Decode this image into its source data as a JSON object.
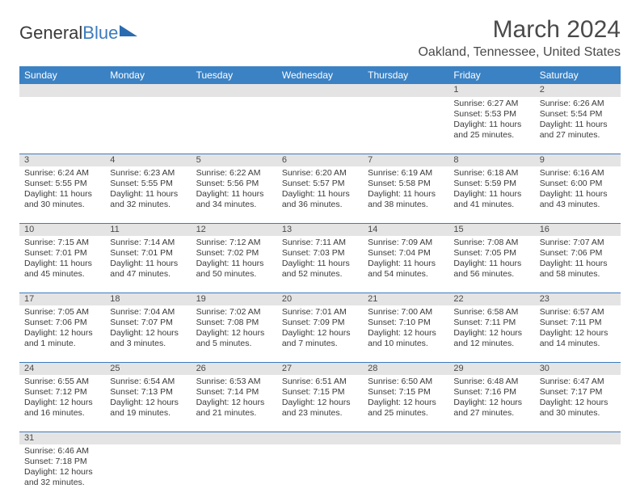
{
  "logo": {
    "part1": "General",
    "part2": "Blue"
  },
  "title": "March 2024",
  "location": "Oakland, Tennessee, United States",
  "colors": {
    "header_bg": "#3b82c4",
    "header_text": "#ffffff",
    "daynum_bg": "#e4e4e4",
    "border": "#3b7bbf",
    "text": "#3a3a3a"
  },
  "dayHeaders": [
    "Sunday",
    "Monday",
    "Tuesday",
    "Wednesday",
    "Thursday",
    "Friday",
    "Saturday"
  ],
  "weeks": [
    [
      null,
      null,
      null,
      null,
      null,
      {
        "n": "1",
        "sr": "6:27 AM",
        "ss": "5:53 PM",
        "dl": "11 hours and 25 minutes."
      },
      {
        "n": "2",
        "sr": "6:26 AM",
        "ss": "5:54 PM",
        "dl": "11 hours and 27 minutes."
      }
    ],
    [
      {
        "n": "3",
        "sr": "6:24 AM",
        "ss": "5:55 PM",
        "dl": "11 hours and 30 minutes."
      },
      {
        "n": "4",
        "sr": "6:23 AM",
        "ss": "5:55 PM",
        "dl": "11 hours and 32 minutes."
      },
      {
        "n": "5",
        "sr": "6:22 AM",
        "ss": "5:56 PM",
        "dl": "11 hours and 34 minutes."
      },
      {
        "n": "6",
        "sr": "6:20 AM",
        "ss": "5:57 PM",
        "dl": "11 hours and 36 minutes."
      },
      {
        "n": "7",
        "sr": "6:19 AM",
        "ss": "5:58 PM",
        "dl": "11 hours and 38 minutes."
      },
      {
        "n": "8",
        "sr": "6:18 AM",
        "ss": "5:59 PM",
        "dl": "11 hours and 41 minutes."
      },
      {
        "n": "9",
        "sr": "6:16 AM",
        "ss": "6:00 PM",
        "dl": "11 hours and 43 minutes."
      }
    ],
    [
      {
        "n": "10",
        "sr": "7:15 AM",
        "ss": "7:01 PM",
        "dl": "11 hours and 45 minutes."
      },
      {
        "n": "11",
        "sr": "7:14 AM",
        "ss": "7:01 PM",
        "dl": "11 hours and 47 minutes."
      },
      {
        "n": "12",
        "sr": "7:12 AM",
        "ss": "7:02 PM",
        "dl": "11 hours and 50 minutes."
      },
      {
        "n": "13",
        "sr": "7:11 AM",
        "ss": "7:03 PM",
        "dl": "11 hours and 52 minutes."
      },
      {
        "n": "14",
        "sr": "7:09 AM",
        "ss": "7:04 PM",
        "dl": "11 hours and 54 minutes."
      },
      {
        "n": "15",
        "sr": "7:08 AM",
        "ss": "7:05 PM",
        "dl": "11 hours and 56 minutes."
      },
      {
        "n": "16",
        "sr": "7:07 AM",
        "ss": "7:06 PM",
        "dl": "11 hours and 58 minutes."
      }
    ],
    [
      {
        "n": "17",
        "sr": "7:05 AM",
        "ss": "7:06 PM",
        "dl": "12 hours and 1 minute."
      },
      {
        "n": "18",
        "sr": "7:04 AM",
        "ss": "7:07 PM",
        "dl": "12 hours and 3 minutes."
      },
      {
        "n": "19",
        "sr": "7:02 AM",
        "ss": "7:08 PM",
        "dl": "12 hours and 5 minutes."
      },
      {
        "n": "20",
        "sr": "7:01 AM",
        "ss": "7:09 PM",
        "dl": "12 hours and 7 minutes."
      },
      {
        "n": "21",
        "sr": "7:00 AM",
        "ss": "7:10 PM",
        "dl": "12 hours and 10 minutes."
      },
      {
        "n": "22",
        "sr": "6:58 AM",
        "ss": "7:11 PM",
        "dl": "12 hours and 12 minutes."
      },
      {
        "n": "23",
        "sr": "6:57 AM",
        "ss": "7:11 PM",
        "dl": "12 hours and 14 minutes."
      }
    ],
    [
      {
        "n": "24",
        "sr": "6:55 AM",
        "ss": "7:12 PM",
        "dl": "12 hours and 16 minutes."
      },
      {
        "n": "25",
        "sr": "6:54 AM",
        "ss": "7:13 PM",
        "dl": "12 hours and 19 minutes."
      },
      {
        "n": "26",
        "sr": "6:53 AM",
        "ss": "7:14 PM",
        "dl": "12 hours and 21 minutes."
      },
      {
        "n": "27",
        "sr": "6:51 AM",
        "ss": "7:15 PM",
        "dl": "12 hours and 23 minutes."
      },
      {
        "n": "28",
        "sr": "6:50 AM",
        "ss": "7:15 PM",
        "dl": "12 hours and 25 minutes."
      },
      {
        "n": "29",
        "sr": "6:48 AM",
        "ss": "7:16 PM",
        "dl": "12 hours and 27 minutes."
      },
      {
        "n": "30",
        "sr": "6:47 AM",
        "ss": "7:17 PM",
        "dl": "12 hours and 30 minutes."
      }
    ],
    [
      {
        "n": "31",
        "sr": "6:46 AM",
        "ss": "7:18 PM",
        "dl": "12 hours and 32 minutes."
      },
      null,
      null,
      null,
      null,
      null,
      null
    ]
  ],
  "labels": {
    "sunrise": "Sunrise:",
    "sunset": "Sunset:",
    "daylight": "Daylight:"
  }
}
